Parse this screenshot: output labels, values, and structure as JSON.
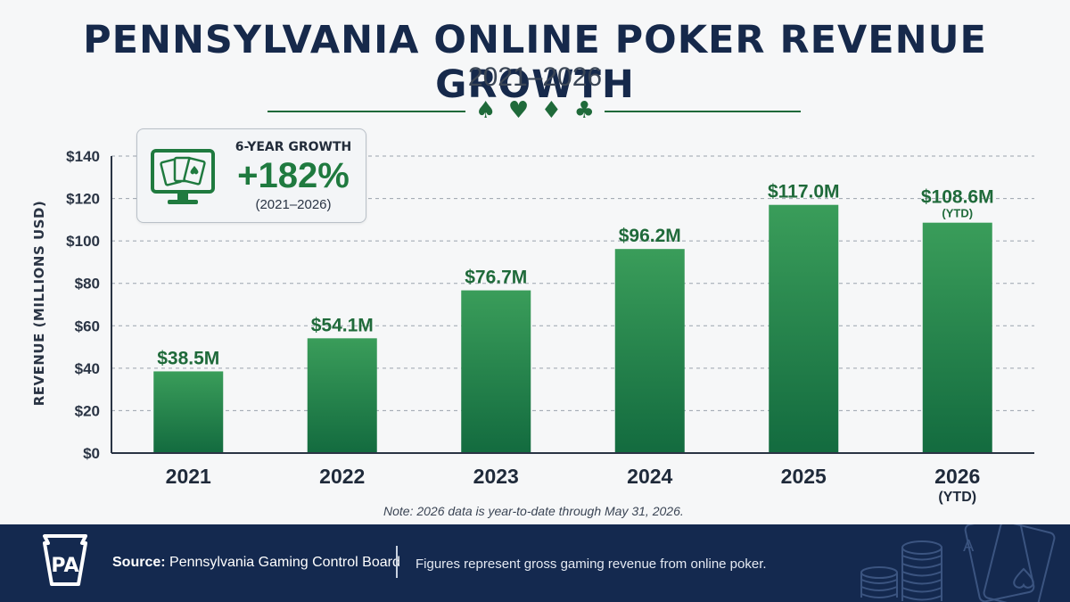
{
  "header": {
    "title": "PENNSYLVANIA ONLINE POKER REVENUE GROWTH",
    "subtitle": "2021–2026",
    "suits": [
      "♠",
      "♥",
      "♦",
      "♣"
    ]
  },
  "colors": {
    "title": "#16294b",
    "bar_top": "#3a9d5a",
    "bar_bottom": "#136b3f",
    "value_label": "#1f6a3a",
    "footer_bg": "#14294f",
    "grid": "#9aa3ad"
  },
  "growth_box": {
    "label": "6-YEAR GROWTH",
    "value": "+182%",
    "range": "(2021–2026)",
    "icon": "monitor-cards-icon"
  },
  "chart_data": {
    "type": "bar",
    "ylabel": "REVENUE (MILLIONS USD)",
    "ylim": [
      0,
      140
    ],
    "y_ticks": [
      0,
      20,
      40,
      60,
      80,
      100,
      120,
      140
    ],
    "y_tick_labels": [
      "$0",
      "$20",
      "$40",
      "$60",
      "$80",
      "$100",
      "$120",
      "$140"
    ],
    "grid": true,
    "categories": [
      "2021",
      "2022",
      "2023",
      "2024",
      "2025",
      "2026"
    ],
    "category_sublabels": [
      "",
      "",
      "",
      "",
      "",
      "(YTD)"
    ],
    "values": [
      38.5,
      54.1,
      76.7,
      96.2,
      117.0,
      108.6
    ],
    "data_labels": [
      "$38.5M",
      "$54.1M",
      "$76.7M",
      "$96.2M",
      "$117.0M",
      "$108.6M"
    ],
    "data_sublabels": [
      "",
      "",
      "",
      "",
      "",
      "(YTD)"
    ]
  },
  "note": "Note: 2026 data is year-to-date through May 31, 2026.",
  "footer": {
    "logo_text": "PA",
    "source_label": "Source:",
    "source_value": "Pennsylvania Gaming Control Board",
    "note": "Figures represent gross gaming revenue from online poker."
  }
}
